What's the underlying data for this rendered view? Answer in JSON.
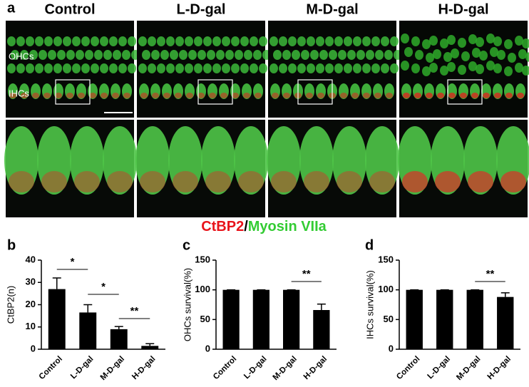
{
  "panel_a": {
    "label": "a",
    "columns": [
      "Control",
      "L-D-gal",
      "M-D-gal",
      "H-D-gal"
    ],
    "cell_labels": [
      "OHCs",
      "IHCs"
    ],
    "stain_legend": {
      "red": "CtBP2",
      "separator": "/",
      "green": "Myosin VIIa"
    }
  },
  "chart_data": [
    {
      "type": "bar",
      "panel_label": "b",
      "y_label": "CtBP2(n)",
      "categories": [
        "Control",
        "L-D-gal",
        "M-D-gal",
        "H-D-gal"
      ],
      "values": [
        27,
        16.5,
        9,
        1.5
      ],
      "errors": [
        5,
        3.5,
        1.2,
        1
      ],
      "color": "#000000",
      "ylim": [
        0,
        40
      ],
      "yticks": [
        0,
        10,
        20,
        30,
        40
      ],
      "annotations": [
        "*",
        "*",
        "**"
      ]
    },
    {
      "type": "bar",
      "panel_label": "c",
      "y_label": "OHCs survival(%)",
      "categories": [
        "Control",
        "L-D-gal",
        "M-D-gal",
        "H-D-gal"
      ],
      "values": [
        100,
        100,
        100,
        66
      ],
      "errors": [
        0,
        0,
        0,
        10
      ],
      "color": "#000000",
      "ylim": [
        0,
        150
      ],
      "yticks": [
        0,
        50,
        100,
        150
      ],
      "annotations": [
        "**"
      ]
    },
    {
      "type": "bar",
      "panel_label": "d",
      "y_label": "IHCs survival(%)",
      "categories": [
        "Control",
        "L-D-gal",
        "M-D-gal",
        "H-D-gal"
      ],
      "values": [
        100,
        100,
        100,
        88
      ],
      "errors": [
        0,
        0,
        0,
        7
      ],
      "color": "#000000",
      "ylim": [
        0,
        150
      ],
      "yticks": [
        0,
        50,
        100,
        150
      ],
      "annotations": [
        "**"
      ]
    }
  ]
}
